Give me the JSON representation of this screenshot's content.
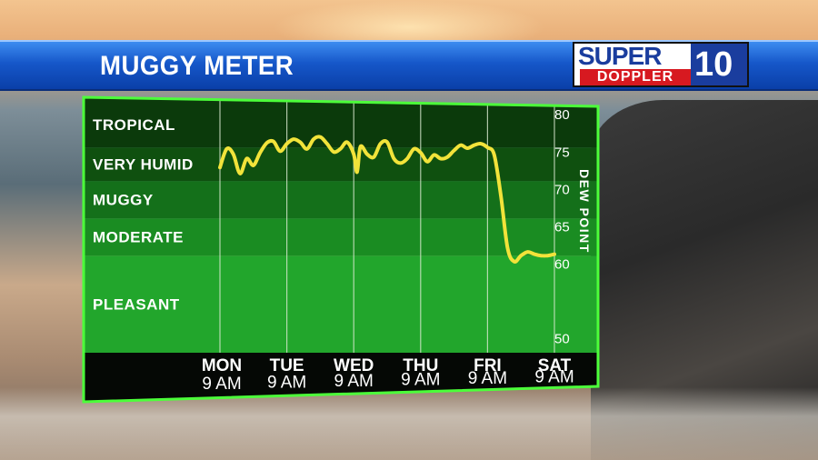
{
  "banner": {
    "title": "MUGGY METER"
  },
  "logo": {
    "super": "SUPER",
    "doppler": "DOPPLER",
    "ten": "10"
  },
  "chart_data": {
    "type": "line",
    "title": "MUGGY METER",
    "ylabel": "DEW POINT",
    "ylim": [
      48,
      81
    ],
    "yticks": [
      80,
      75,
      70,
      65,
      60,
      50
    ],
    "categories": [
      {
        "day": "MON",
        "time": "9 AM"
      },
      {
        "day": "TUE",
        "time": "9 AM"
      },
      {
        "day": "WED",
        "time": "9 AM"
      },
      {
        "day": "THU",
        "time": "9 AM"
      },
      {
        "day": "FRI",
        "time": "9 AM"
      },
      {
        "day": "SAT",
        "time": "9 AM"
      }
    ],
    "bands": [
      {
        "label": "TROPICAL",
        "from": 75.5,
        "to": 81,
        "color": "#0b3a0b"
      },
      {
        "label": "VERY HUMID",
        "from": 71,
        "to": 75.5,
        "color": "#0f500f"
      },
      {
        "label": "MUGGY",
        "from": 66,
        "to": 71,
        "color": "#14701a"
      },
      {
        "label": "MODERATE",
        "from": 61,
        "to": 66,
        "color": "#1a8c22"
      },
      {
        "label": "PLEASANT",
        "from": 48,
        "to": 61,
        "color": "#22a62c"
      }
    ],
    "series": [
      {
        "color": "#f2e33a",
        "x": [
          0,
          0.1,
          0.2,
          0.3,
          0.4,
          0.5,
          0.6,
          0.7,
          0.8,
          0.9,
          1.0,
          1.1,
          1.2,
          1.3,
          1.4,
          1.5,
          1.6,
          1.7,
          1.8,
          1.9,
          2.0,
          2.05,
          2.1,
          2.2,
          2.3,
          2.4,
          2.5,
          2.6,
          2.7,
          2.8,
          2.9,
          3.0,
          3.1,
          3.2,
          3.3,
          3.4,
          3.5,
          3.6,
          3.7,
          3.8,
          3.9,
          4.0,
          4.1,
          4.2,
          4.3,
          4.4,
          4.5,
          4.6,
          4.7,
          4.8,
          4.9,
          5.0
        ],
        "y": [
          72.8,
          75.3,
          74.6,
          72.0,
          74.0,
          73.1,
          74.8,
          76.1,
          76.3,
          75.0,
          76.0,
          76.6,
          76.2,
          75.3,
          76.6,
          76.9,
          76.0,
          74.9,
          75.3,
          76.2,
          74.6,
          72.2,
          75.6,
          74.6,
          74.2,
          76.0,
          76.2,
          74.0,
          73.4,
          74.0,
          75.3,
          74.8,
          73.6,
          74.5,
          74.0,
          74.2,
          75.1,
          75.8,
          75.4,
          75.8,
          76.0,
          75.5,
          74.5,
          69.0,
          62.0,
          60.2,
          61.0,
          61.5,
          61.2,
          61.0,
          61.0,
          61.2
        ]
      }
    ]
  }
}
